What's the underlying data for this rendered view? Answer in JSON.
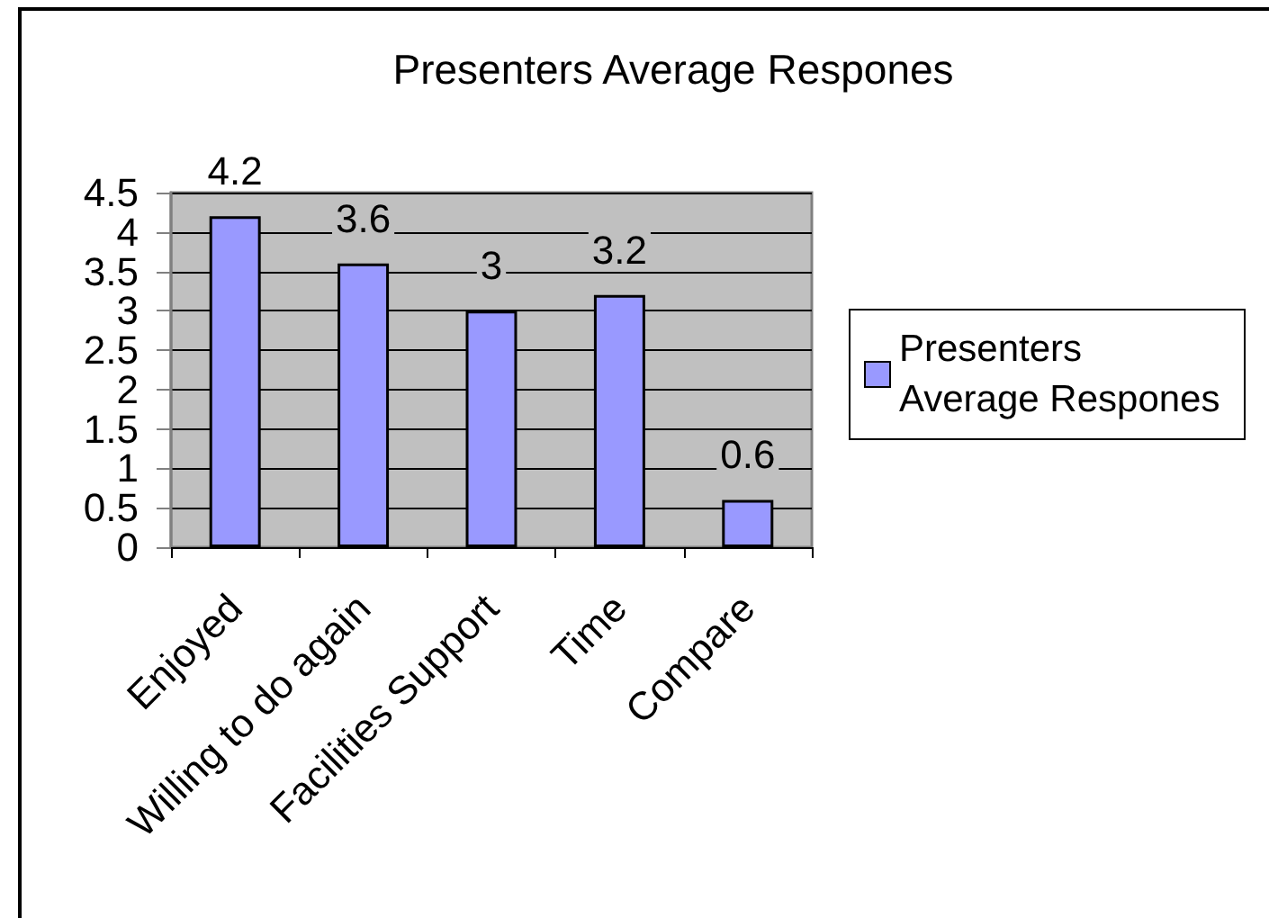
{
  "chart_data": {
    "type": "bar",
    "title": "Presenters Average Respones",
    "categories": [
      "Enjoyed",
      "Willing to do again",
      "Facilities Support",
      "Time",
      "Compare"
    ],
    "series": [
      {
        "name": "Presenters Average Respones",
        "color": "#9999ff",
        "values": [
          4.2,
          3.6,
          3,
          3.2,
          0.6
        ]
      }
    ],
    "ylim": [
      0,
      4.5
    ],
    "yticks": [
      0,
      0.5,
      1,
      1.5,
      2,
      2.5,
      3,
      3.5,
      4,
      4.5
    ],
    "grid": "y",
    "legend": "right",
    "data_labels": true
  }
}
